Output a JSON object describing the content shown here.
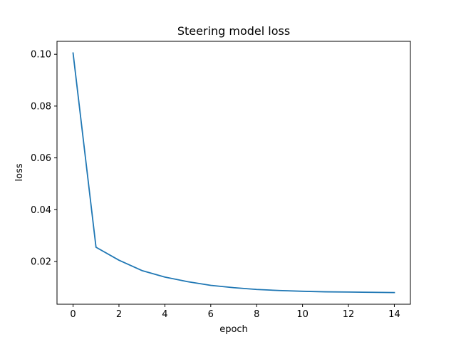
{
  "colors": {
    "line": "#1f77b4",
    "axes": "#000000",
    "background": "#ffffff"
  },
  "chart_data": {
    "type": "line",
    "title": "Steering model loss",
    "xlabel": "epoch",
    "ylabel": "loss",
    "xlim": [
      -0.7,
      14.7
    ],
    "ylim": [
      0.0035,
      0.105
    ],
    "xticks": [
      0,
      2,
      4,
      6,
      8,
      10,
      12,
      14
    ],
    "yticks": [
      0.02,
      0.04,
      0.06,
      0.08,
      0.1
    ],
    "xtick_labels": [
      "0",
      "2",
      "4",
      "6",
      "8",
      "10",
      "12",
      "14"
    ],
    "ytick_labels": [
      "0.02",
      "0.04",
      "0.06",
      "0.08",
      "0.10"
    ],
    "grid": false,
    "legend": false,
    "series": [
      {
        "x": [
          0,
          1,
          2,
          3,
          4,
          5,
          6,
          7,
          8,
          9,
          10,
          11,
          12,
          13,
          14
        ],
        "values": [
          0.1005,
          0.0255,
          0.0205,
          0.0165,
          0.014,
          0.0122,
          0.0108,
          0.0099,
          0.0092,
          0.0088,
          0.0085,
          0.0083,
          0.0082,
          0.0081,
          0.008
        ]
      }
    ]
  }
}
